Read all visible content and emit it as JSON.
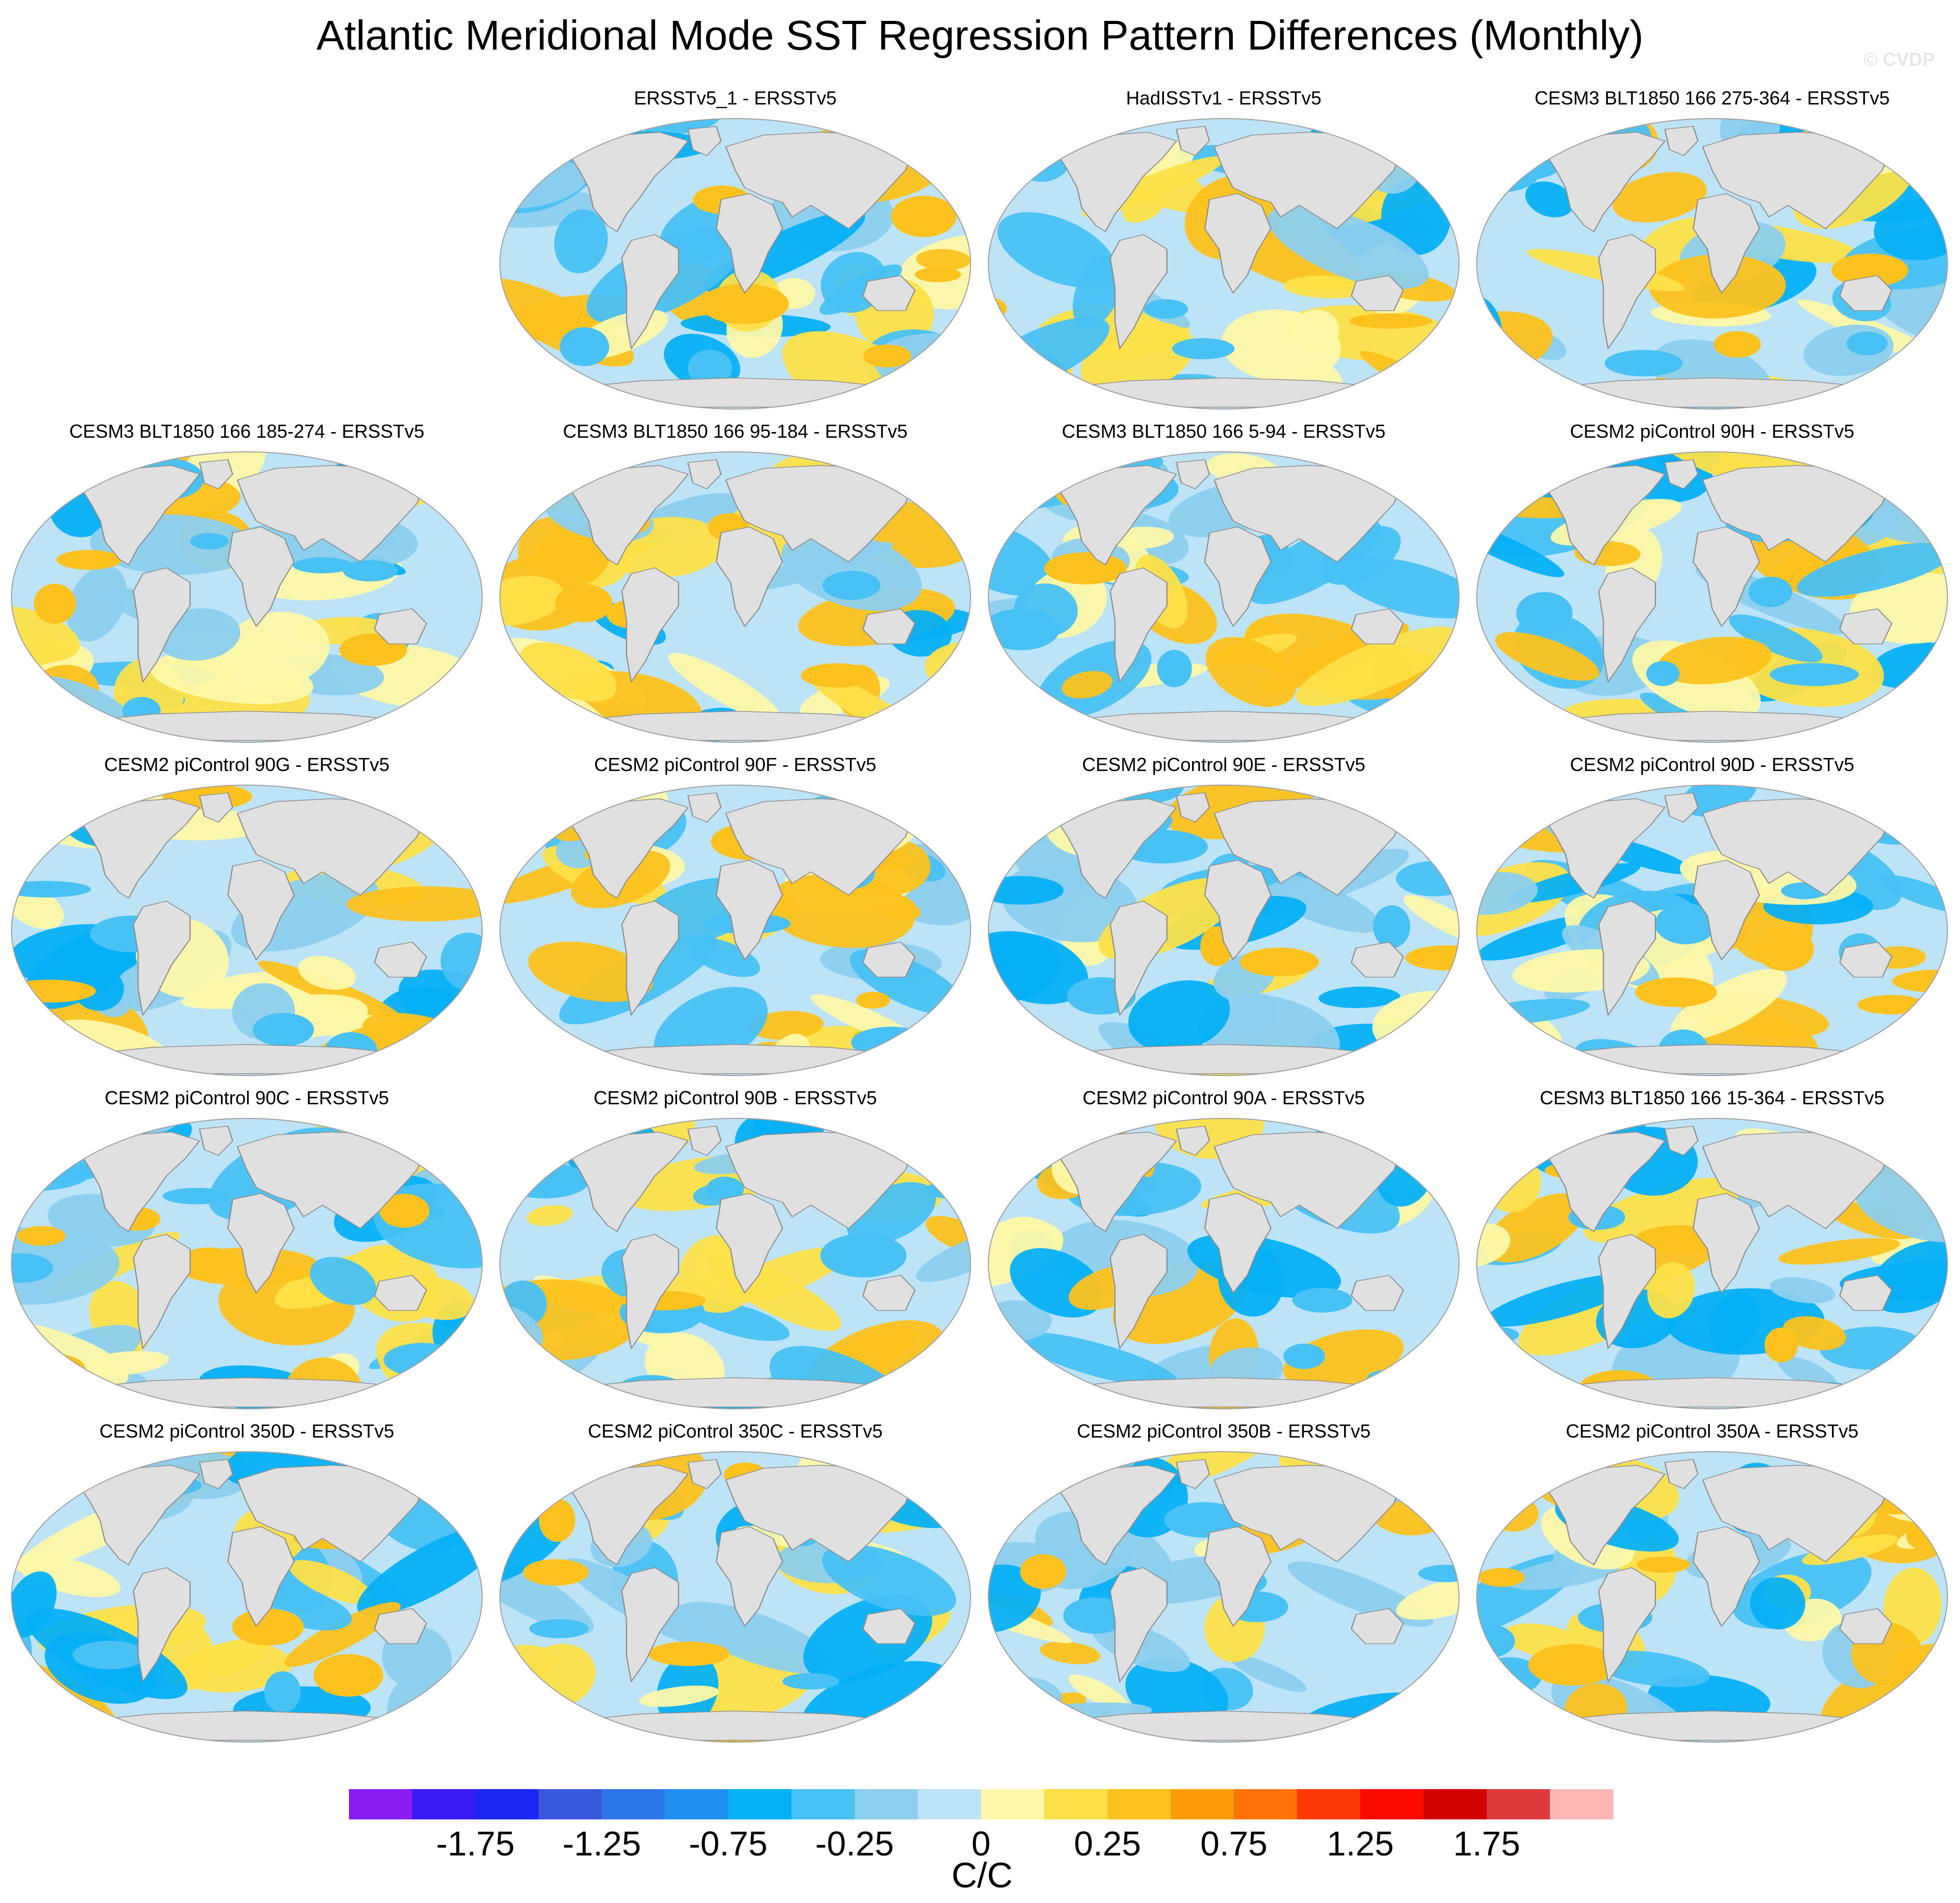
{
  "title": "Atlantic Meridional Mode SST Regression Pattern Differences (Monthly)",
  "watermark": "© CVDP",
  "chart_data": {
    "type": "heatmap",
    "title": "Atlantic Meridional Mode SST Regression Pattern Differences (Monthly)",
    "map_projection": "Robinson (global, filled contours)",
    "colors": {
      "land": "#e0e0e0",
      "coast": "#8c8c8c",
      "frame": "#a0a0a0"
    },
    "panels": [
      {
        "title": "ERSSTv5_1 - ERSSTv5",
        "row": 0,
        "col": 1
      },
      {
        "title": "HadISSTv1 - ERSSTv5",
        "row": 0,
        "col": 2
      },
      {
        "title": "CESM3 BLT1850 166 275-364 - ERSSTv5",
        "row": 0,
        "col": 3
      },
      {
        "title": "CESM3 BLT1850 166 185-274 - ERSSTv5",
        "row": 1,
        "col": 0
      },
      {
        "title": "CESM3 BLT1850 166 95-184 - ERSSTv5",
        "row": 1,
        "col": 1
      },
      {
        "title": "CESM3 BLT1850 166 5-94 - ERSSTv5",
        "row": 1,
        "col": 2
      },
      {
        "title": "CESM2 piControl 90H - ERSSTv5",
        "row": 1,
        "col": 3
      },
      {
        "title": "CESM2 piControl 90G - ERSSTv5",
        "row": 2,
        "col": 0
      },
      {
        "title": "CESM2 piControl 90F - ERSSTv5",
        "row": 2,
        "col": 1
      },
      {
        "title": "CESM2 piControl 90E - ERSSTv5",
        "row": 2,
        "col": 2
      },
      {
        "title": "CESM2 piControl 90D - ERSSTv5",
        "row": 2,
        "col": 3
      },
      {
        "title": "CESM2 piControl 90C - ERSSTv5",
        "row": 3,
        "col": 0
      },
      {
        "title": "CESM2 piControl 90B - ERSSTv5",
        "row": 3,
        "col": 1
      },
      {
        "title": "CESM2 piControl 90A - ERSSTv5",
        "row": 3,
        "col": 2
      },
      {
        "title": "CESM3 BLT1850 166 15-364 - ERSSTv5",
        "row": 3,
        "col": 3
      },
      {
        "title": "CESM2 piControl 350D - ERSSTv5",
        "row": 4,
        "col": 0
      },
      {
        "title": "CESM2 piControl 350C - ERSSTv5",
        "row": 4,
        "col": 1
      },
      {
        "title": "CESM2 piControl 350B - ERSSTv5",
        "row": 4,
        "col": 2
      },
      {
        "title": "CESM2 piControl 350A - ERSSTv5",
        "row": 4,
        "col": 3
      }
    ],
    "colorbar": {
      "unit_label": "C/C",
      "colors": [
        "#8a1cf2",
        "#3a1af2",
        "#1a28f2",
        "#3858dd",
        "#2d77ea",
        "#1e8ff0",
        "#06b0f5",
        "#48c1f5",
        "#8ccfee",
        "#bde3f7",
        "#fdf8a8",
        "#fde048",
        "#fdc21e",
        "#fd9c08",
        "#fd7206",
        "#fe3b07",
        "#fe0a05",
        "#d30302",
        "#dc3b3b",
        "#feb7b5"
      ],
      "tick_labels": [
        "-1.75",
        "-1.25",
        "-0.75",
        "-0.25",
        "0",
        "0.25",
        "0.75",
        "1.25",
        "1.75"
      ],
      "range": [
        -2.0,
        2.0
      ]
    }
  }
}
